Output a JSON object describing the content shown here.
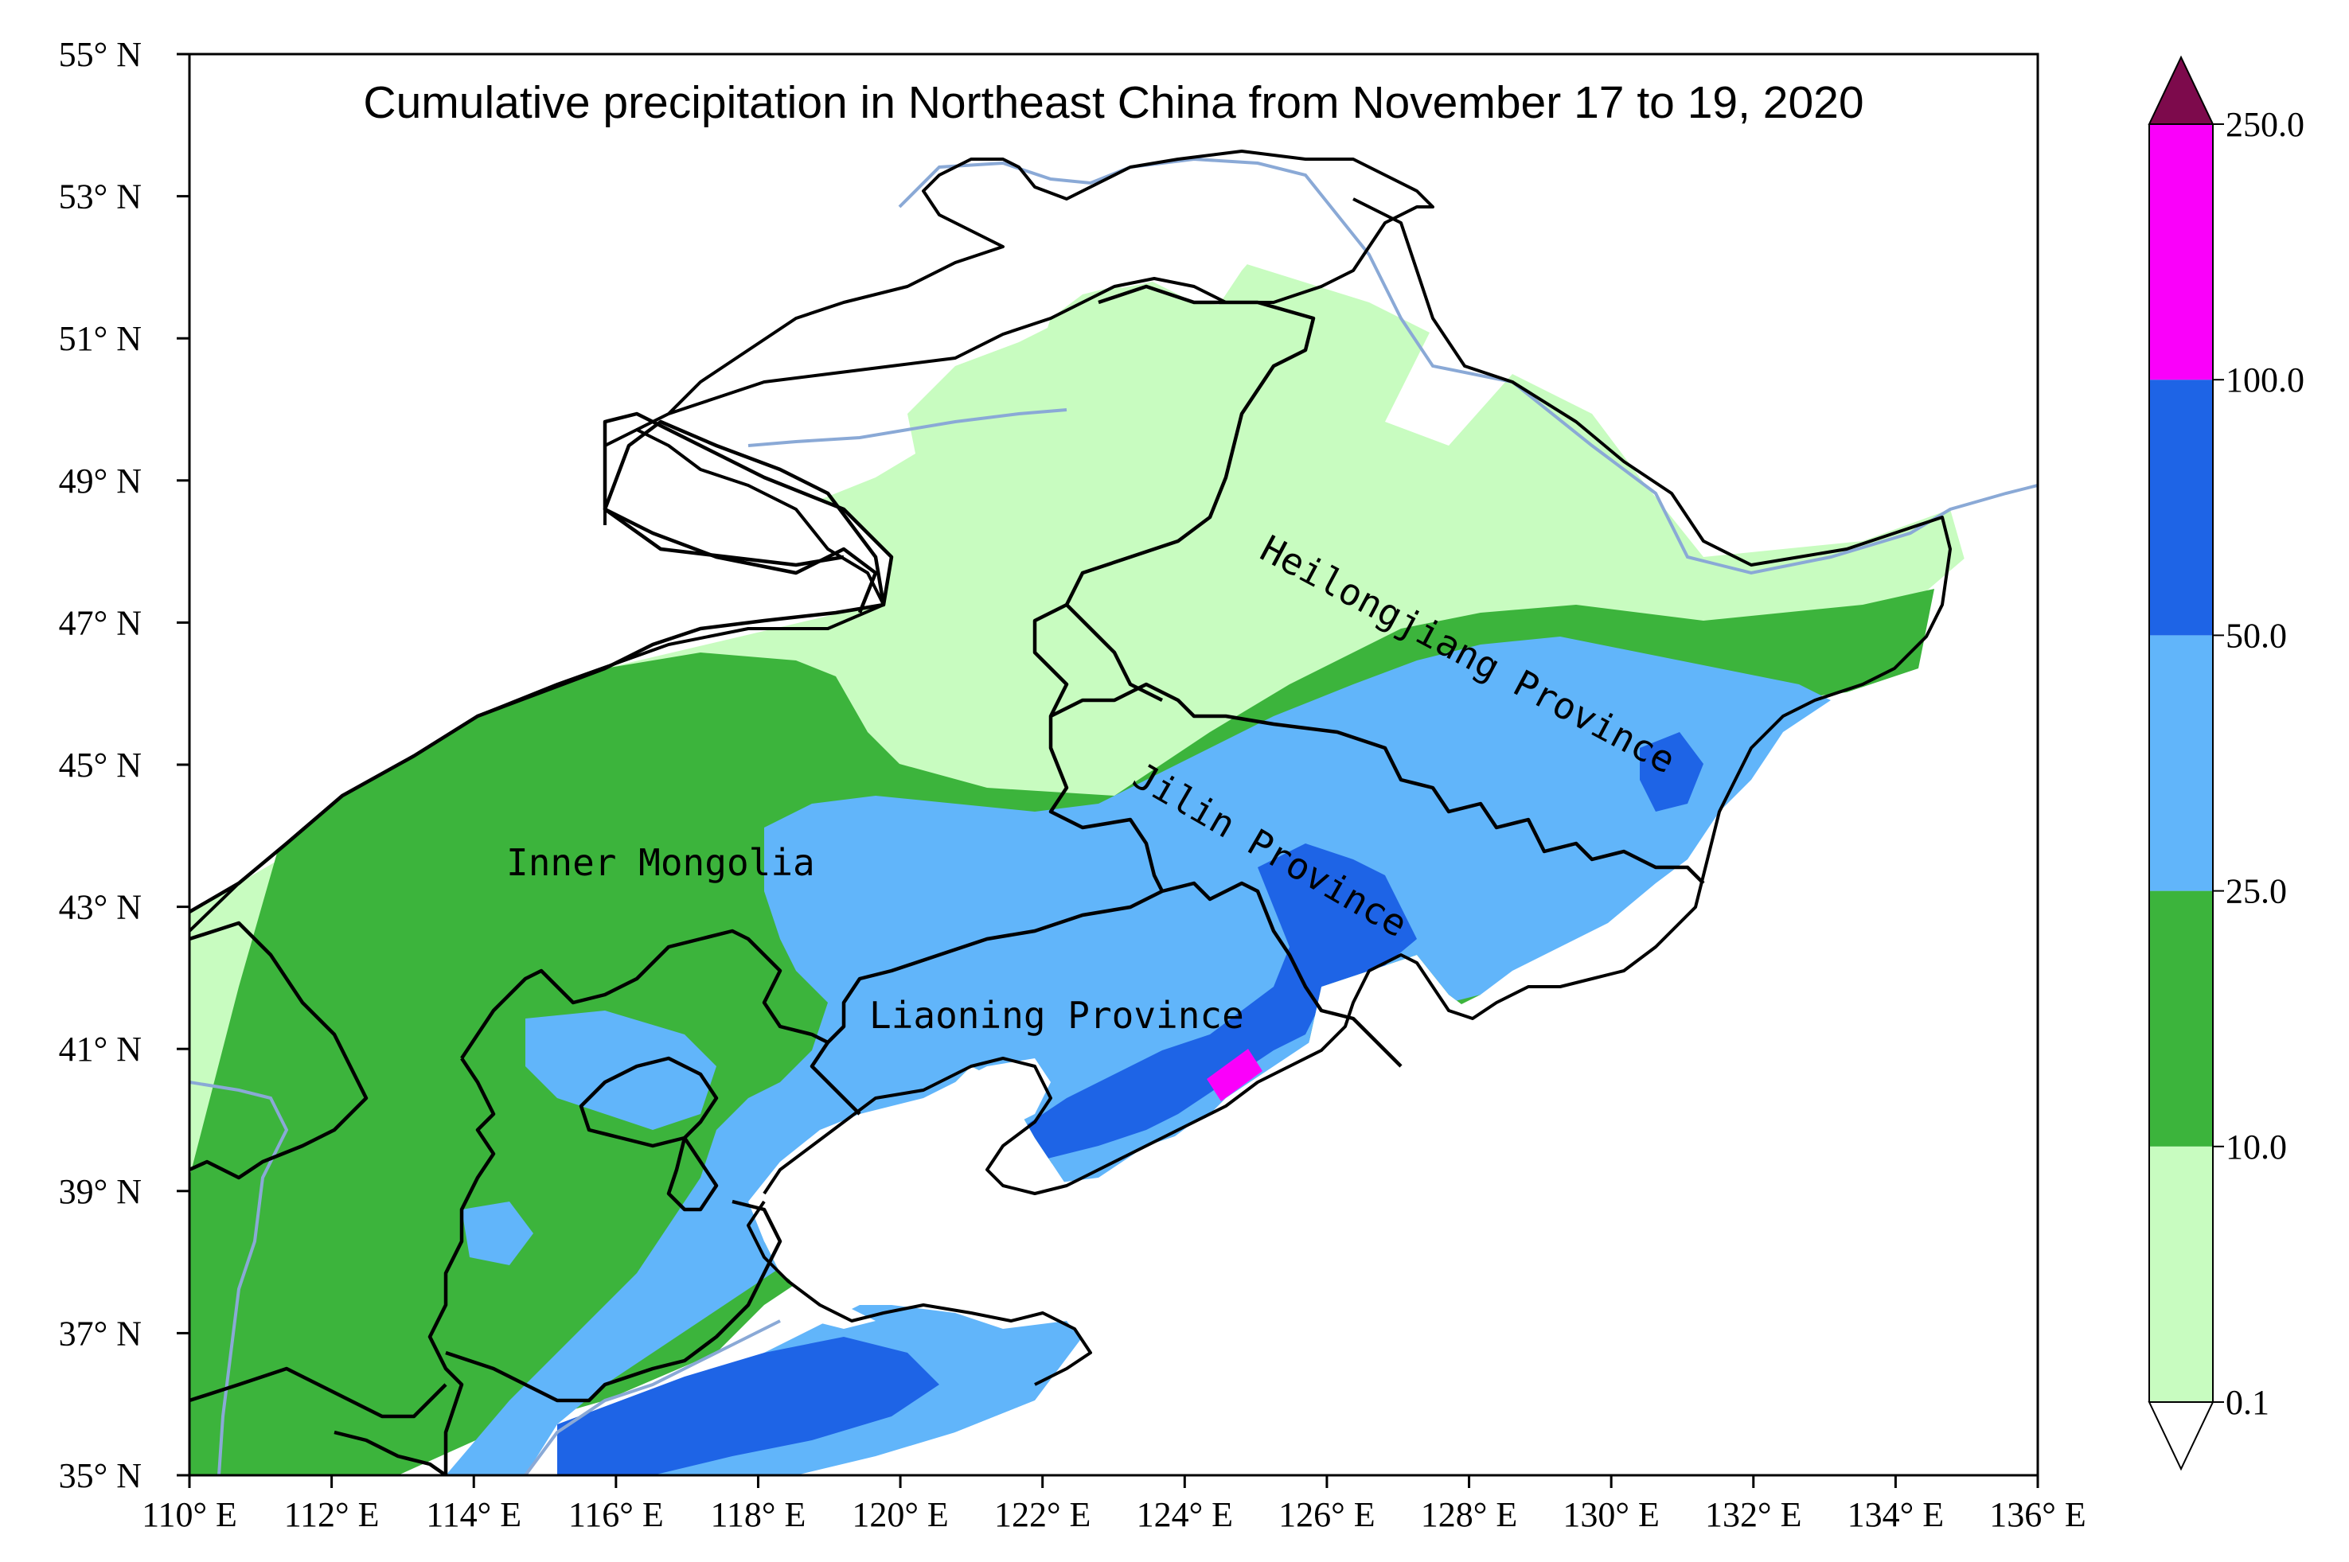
{
  "title": "Cumulative precipitation in Northeast China from November 17 to 19, 2020",
  "map": {
    "lon_range": [
      110,
      136
    ],
    "lat_range": [
      35,
      55
    ],
    "lon_ticks": [
      {
        "value": 110,
        "label": "110° E"
      },
      {
        "value": 112,
        "label": "112° E"
      },
      {
        "value": 114,
        "label": "114° E"
      },
      {
        "value": 116,
        "label": "116° E"
      },
      {
        "value": 118,
        "label": "118° E"
      },
      {
        "value": 120,
        "label": "120° E"
      },
      {
        "value": 122,
        "label": "122° E"
      },
      {
        "value": 124,
        "label": "124° E"
      },
      {
        "value": 126,
        "label": "126° E"
      },
      {
        "value": 128,
        "label": "128° E"
      },
      {
        "value": 130,
        "label": "130° E"
      },
      {
        "value": 132,
        "label": "132° E"
      },
      {
        "value": 134,
        "label": "134° E"
      },
      {
        "value": 136,
        "label": "136° E"
      }
    ],
    "lat_ticks": [
      {
        "value": 35,
        "label": "35° N"
      },
      {
        "value": 37,
        "label": "37° N"
      },
      {
        "value": 39,
        "label": "39° N"
      },
      {
        "value": 41,
        "label": "41° N"
      },
      {
        "value": 43,
        "label": "43° N"
      },
      {
        "value": 45,
        "label": "45° N"
      },
      {
        "value": 47,
        "label": "47° N"
      },
      {
        "value": 49,
        "label": "49° N"
      },
      {
        "value": 51,
        "label": "51° N"
      },
      {
        "value": 53,
        "label": "53° N"
      },
      {
        "value": 55,
        "label": "55° N"
      }
    ],
    "region_labels": {
      "heilongjiang": "Heilongjiang Province",
      "jilin": "Jilin Province",
      "inner_mongolia": "Inner Mongolia",
      "liaoning": "Liaoning Province"
    },
    "colors": {
      "border": "#000000",
      "river": "#8aa9d6",
      "frame": "#000000"
    }
  },
  "colorbar": {
    "unit_levels": [
      0.1,
      10.0,
      25.0,
      50.0,
      100.0,
      250.0
    ],
    "labels": [
      "0.1",
      "10.0",
      "25.0",
      "50.0",
      "100.0",
      "250.0"
    ],
    "bins": [
      {
        "from": 0.1,
        "to": 10.0,
        "color": "#c8fcc0"
      },
      {
        "from": 10.0,
        "to": 25.0,
        "color": "#3cb43c"
      },
      {
        "from": 25.0,
        "to": 50.0,
        "color": "#61b5fa"
      },
      {
        "from": 50.0,
        "to": 100.0,
        "color": "#1e64e6"
      },
      {
        "from": 100.0,
        "to": 250.0,
        "color": "#fa00fa"
      }
    ],
    "over_color": "#7d0a4c",
    "under_color": "#ffffff"
  }
}
